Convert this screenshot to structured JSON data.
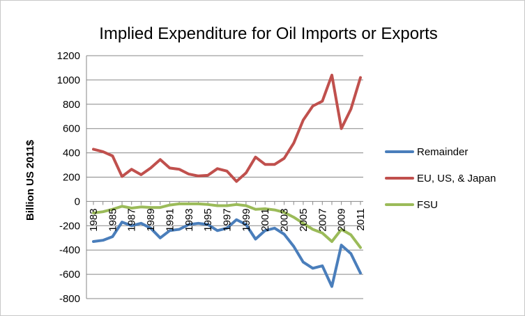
{
  "chart_data": {
    "type": "line",
    "title": "Implied Expenditure for Oil Imports or Exports",
    "ylabel": "Billion US 2011$",
    "xlabel": "",
    "ylim": [
      -800,
      1200
    ],
    "yticks": [
      1200,
      1000,
      800,
      600,
      400,
      200,
      0,
      -200,
      -400,
      -600,
      -800
    ],
    "x": [
      1983,
      1984,
      1985,
      1986,
      1987,
      1988,
      1989,
      1990,
      1991,
      1992,
      1993,
      1994,
      1995,
      1996,
      1997,
      1998,
      1999,
      2000,
      2001,
      2002,
      2003,
      2004,
      2005,
      2006,
      2007,
      2008,
      2009,
      2010,
      2011
    ],
    "xtick_labels": [
      "1983",
      "1985",
      "1987",
      "1989",
      "1991",
      "1993",
      "1995",
      "1997",
      "1999",
      "2001",
      "2003",
      "2005",
      "2007",
      "2009",
      "2011"
    ],
    "legend_position": "right",
    "grid": "horizontal",
    "series": [
      {
        "name": "Remainder",
        "color": "#4a7ebb",
        "values": [
          -330,
          -320,
          -290,
          -170,
          -200,
          -180,
          -220,
          -300,
          -240,
          -230,
          -190,
          -180,
          -190,
          -240,
          -220,
          -150,
          -190,
          -310,
          -240,
          -220,
          -270,
          -370,
          -500,
          -550,
          -530,
          -700,
          -360,
          -430,
          -590
        ]
      },
      {
        "name": "EU, US, & Japan",
        "color": "#c0504d",
        "values": [
          430,
          410,
          375,
          205,
          265,
          220,
          275,
          345,
          275,
          265,
          225,
          210,
          215,
          270,
          250,
          165,
          235,
          365,
          305,
          305,
          355,
          480,
          670,
          785,
          825,
          1040,
          600,
          760,
          1020
        ]
      },
      {
        "name": "FSU",
        "color": "#9bbb59",
        "values": [
          -95,
          -85,
          -65,
          -40,
          -55,
          -45,
          -50,
          -50,
          -30,
          -20,
          -20,
          -20,
          -25,
          -35,
          -35,
          -25,
          -35,
          -65,
          -60,
          -70,
          -90,
          -130,
          -180,
          -230,
          -260,
          -330,
          -230,
          -275,
          -380
        ]
      }
    ]
  }
}
